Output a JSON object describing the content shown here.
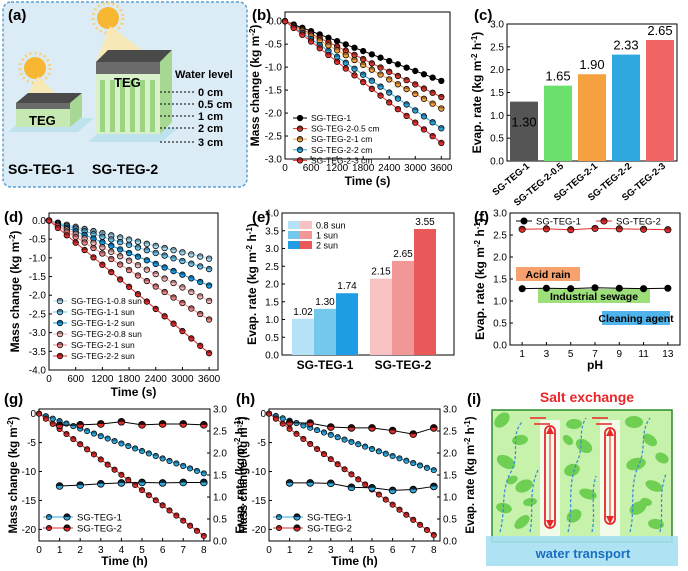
{
  "panels": {
    "a": {
      "label": "(a)",
      "teg_label_1": "TEG",
      "teg_label_2": "TEG",
      "water_level_title": "Water level",
      "water_levels": [
        "0 cm",
        "0.5 cm",
        "1 cm",
        "2 cm",
        "3 cm"
      ],
      "sample_1": "SG-TEG-1",
      "sample_2": "SG-TEG-2",
      "colors": {
        "panel_bg": "#dcecf6",
        "frame": "#5aa0d6",
        "teg_top": "#5a5a5a",
        "pillar": "#b4e0a4",
        "water": "#bfe3ee"
      }
    },
    "i": {
      "label": "(i)",
      "title": "Salt exchange",
      "bottom_label": "water transport",
      "colors": {
        "title": "#e8262b",
        "background": "#bff2a0",
        "grain": "#6fcf53",
        "bottom": "#a6dff2",
        "arrow": "#5aa0d6",
        "channel": "#e8262b"
      }
    }
  },
  "chart_data": [
    {
      "panel": "(b)",
      "type": "line",
      "xlabel": "Time (s)",
      "ylabel": "Mass change (kg m⁻²)",
      "xlim": [
        0,
        3800
      ],
      "ylim": [
        -3.0,
        0.2
      ],
      "xticks": [
        0,
        600,
        1200,
        1800,
        2400,
        3000,
        3600
      ],
      "yticks": [
        -3.0,
        -2.5,
        -2.0,
        -1.5,
        -1.0,
        -0.5,
        0.0
      ],
      "x": [
        0,
        200,
        400,
        600,
        800,
        1000,
        1200,
        1400,
        1600,
        1800,
        2000,
        2200,
        2400,
        2600,
        2800,
        3000,
        3200,
        3400,
        3600
      ],
      "series": [
        {
          "name": "SG-TEG-1",
          "slope_per_hour": -1.3,
          "color": "#000000"
        },
        {
          "name": "SG-TEG-2-0.5 cm",
          "slope_per_hour": -1.65,
          "color": "#d83a2e"
        },
        {
          "name": "SG-TEG-2-1 cm",
          "slope_per_hour": -1.9,
          "color": "#f7a03f"
        },
        {
          "name": "SG-TEG-2-2 cm",
          "slope_per_hour": -2.33,
          "color": "#2fa8e0"
        },
        {
          "name": "SG-TEG-2-3 cm",
          "slope_per_hour": -2.65,
          "color": "#ef2f2f"
        }
      ],
      "legend_order": [
        "SG-TEG-1",
        "SG-TEG-2-0.5 cm",
        "SG-TEG-2-1 cm",
        "SG-TEG-2-2 cm",
        "SG-TEG-2-3 cm"
      ],
      "legend_placement": "bottom-left"
    },
    {
      "panel": "(c)",
      "type": "bar",
      "categories": [
        "SG-TEG-1",
        "SG-TEG-2-0.5",
        "SG-TEG-2-1",
        "SG-TEG-2-2",
        "SG-TEG-2-3"
      ],
      "values": [
        1.3,
        1.65,
        1.9,
        2.33,
        2.65
      ],
      "labels": [
        "1.30",
        "1.65",
        "1.90",
        "2.33",
        "2.65"
      ],
      "colors": [
        "#555555",
        "#6be06b",
        "#f7a03f",
        "#2fa8e0",
        "#f06464"
      ],
      "ylabel": "Evap. rate (kg m⁻² h⁻¹)",
      "ylim": [
        0,
        3.0
      ],
      "yticks": [
        0.0,
        0.5,
        1.0,
        1.5,
        2.0,
        2.5,
        3.0
      ]
    },
    {
      "panel": "(d)",
      "type": "line",
      "xlabel": "Time (s)",
      "ylabel": "Mass change (kg m⁻²)",
      "xlim": [
        0,
        3800
      ],
      "ylim": [
        -4.0,
        0.2
      ],
      "xticks": [
        0,
        600,
        1200,
        1800,
        2400,
        3000,
        3600
      ],
      "yticks": [
        -4.0,
        -3.5,
        -3.0,
        -2.5,
        -2.0,
        -1.5,
        -1.0,
        -0.5,
        0.0
      ],
      "x": [
        0,
        200,
        400,
        600,
        800,
        1000,
        1200,
        1400,
        1600,
        1800,
        2000,
        2200,
        2400,
        2600,
        2800,
        3000,
        3200,
        3400,
        3600
      ],
      "series": [
        {
          "name": "SG-TEG-1-0.8 sun",
          "slope_per_hour": -1.02,
          "color": "#a9dcf2"
        },
        {
          "name": "SG-TEG-1-1 sun",
          "slope_per_hour": -1.3,
          "color": "#6cc4ec"
        },
        {
          "name": "SG-TEG-1-2 sun",
          "slope_per_hour": -1.74,
          "color": "#1a9be3"
        },
        {
          "name": "SG-TEG-2-0.8 sun",
          "slope_per_hour": -2.15,
          "color": "#f6b7b7"
        },
        {
          "name": "SG-TEG-2-1 sun",
          "slope_per_hour": -2.65,
          "color": "#f08686"
        },
        {
          "name": "SG-TEG-2-2 sun",
          "slope_per_hour": -3.55,
          "color": "#e12c2c"
        }
      ],
      "legend_placement": "bottom-left"
    },
    {
      "panel": "(e)",
      "type": "bar",
      "groups": [
        "SG-TEG-1",
        "SG-TEG-2"
      ],
      "series": [
        {
          "name": "0.8 sun",
          "values": [
            1.02,
            2.15
          ],
          "labels": [
            "1.02",
            "2.15"
          ]
        },
        {
          "name": "1 sun",
          "values": [
            1.3,
            2.65
          ],
          "labels": [
            "1.30",
            "2.65"
          ]
        },
        {
          "name": "2 sun",
          "values": [
            1.74,
            3.55
          ],
          "labels": [
            "1.74",
            "3.55"
          ]
        }
      ],
      "group_colors": [
        [
          "#b5e2f6",
          "#74c8ee",
          "#1e9de4"
        ],
        [
          "#f8c2c2",
          "#f29797",
          "#ea5959"
        ]
      ],
      "legend_colors": [
        "#b5e2f6",
        "#74c8ee",
        "#1e9de4"
      ],
      "ylabel": "Evap. rate (kg m⁻² h⁻¹)",
      "ylim": [
        0,
        4.0
      ],
      "yticks": [
        0.0,
        0.5,
        1.0,
        1.5,
        2.0,
        2.5,
        3.0,
        3.5,
        4.0
      ],
      "legend_placement": "top-left"
    },
    {
      "panel": "(f)",
      "type": "line",
      "xlabel": "pH",
      "ylabel": "Evap. rate (kg m⁻² h⁻¹)",
      "x": [
        1,
        3,
        5,
        7,
        9,
        11,
        13
      ],
      "xlim": [
        0,
        14
      ],
      "ylim": [
        0,
        3.0
      ],
      "yticks": [
        0.0,
        0.5,
        1.0,
        1.5,
        2.0,
        2.5,
        3.0
      ],
      "xticks": [
        1,
        3,
        5,
        7,
        9,
        11,
        13
      ],
      "series": [
        {
          "name": "SG-TEG-1",
          "values": [
            1.28,
            1.29,
            1.28,
            1.3,
            1.29,
            1.28,
            1.29
          ],
          "color": "#000000"
        },
        {
          "name": "SG-TEG-2",
          "values": [
            2.63,
            2.64,
            2.62,
            2.65,
            2.64,
            2.63,
            2.62
          ],
          "color": "#e12c2c"
        }
      ],
      "annotations": [
        {
          "text": "Acid rain",
          "color": "#f7a26e"
        },
        {
          "text": "Industrial sewage",
          "color": "#9de07b"
        },
        {
          "text": "Cleaning agent",
          "color": "#4fb3ec"
        }
      ],
      "legend_placement": "top"
    },
    {
      "panel": "(g)",
      "type": "line",
      "xlabel": "Time (h)",
      "ylabel": "Mass change (kg m⁻²)",
      "ylabel_right": "Evap. rate (kg m⁻² h⁻¹)",
      "xlim": [
        0,
        8.3
      ],
      "ylim": [
        -22,
        0.8
      ],
      "ylim_right": [
        0,
        3.0
      ],
      "xticks": [
        0,
        1,
        2,
        3,
        4,
        5,
        6,
        7,
        8
      ],
      "yticks": [
        -20,
        -15,
        -10,
        -5,
        0
      ],
      "yticks_right": [
        0.0,
        0.5,
        1.0,
        1.5,
        2.0,
        2.5,
        3.0
      ],
      "mass_series": [
        {
          "name": "SG-TEG-1",
          "slope_per_hour": -1.29,
          "color": "#2fa8e0"
        },
        {
          "name": "SG-TEG-2",
          "slope_per_hour": -2.64,
          "color": "#e12c2c"
        }
      ],
      "x_mass": [
        0,
        0.333,
        0.667,
        1,
        1.333,
        1.667,
        2,
        2.333,
        2.667,
        3,
        3.333,
        3.667,
        4,
        4.333,
        4.667,
        5,
        5.333,
        5.667,
        6,
        6.333,
        6.667,
        7,
        7.333,
        7.667,
        8
      ],
      "rate_x": [
        1,
        2,
        3,
        4,
        5,
        6,
        7,
        8
      ],
      "rate_series": [
        {
          "name": "SG-TEG-1",
          "values": [
            1.25,
            1.27,
            1.3,
            1.32,
            1.33,
            1.32,
            1.33,
            1.33
          ],
          "color": "#2fa8e0"
        },
        {
          "name": "SG-TEG-2",
          "values": [
            2.63,
            2.64,
            2.66,
            2.71,
            2.64,
            2.66,
            2.66,
            2.64
          ],
          "color": "#e12c2c"
        }
      ],
      "legend": [
        "SG-TEG-1",
        "SG-TEG-2"
      ],
      "legend_placement": "bottom-left"
    },
    {
      "panel": "(h)",
      "type": "line",
      "xlabel": "Time (h)",
      "ylabel": "Mass change (kg m⁻²)",
      "ylabel_right": "Evap. rate (kg m⁻² h⁻¹)",
      "xlim": [
        0,
        8.3
      ],
      "ylim": [
        -22,
        0.8
      ],
      "ylim_right": [
        0,
        3.0
      ],
      "xticks": [
        0,
        1,
        2,
        3,
        4,
        5,
        6,
        7,
        8
      ],
      "yticks": [
        -20,
        -15,
        -10,
        -5,
        0
      ],
      "yticks_right": [
        0.0,
        0.5,
        1.0,
        1.5,
        2.0,
        2.5,
        3.0
      ],
      "mass_series": [
        {
          "name": "SG-TEG-1",
          "slope_per_hour": -1.22,
          "color": "#2fa8e0"
        },
        {
          "name": "SG-TEG-2",
          "slope_per_hour": -2.62,
          "color": "#e12c2c"
        }
      ],
      "x_mass": [
        0,
        0.333,
        0.667,
        1,
        1.333,
        1.667,
        2,
        2.333,
        2.667,
        3,
        3.333,
        3.667,
        4,
        4.333,
        4.667,
        5,
        5.333,
        5.667,
        6,
        6.333,
        6.667,
        7,
        7.333,
        7.667,
        8
      ],
      "rate_x": [
        1,
        2,
        3,
        4,
        5,
        6,
        7,
        8
      ],
      "rate_series": [
        {
          "name": "SG-TEG-1",
          "values": [
            1.32,
            1.32,
            1.31,
            1.22,
            1.21,
            1.15,
            1.17,
            1.24
          ],
          "color": "#2fa8e0"
        },
        {
          "name": "SG-TEG-2",
          "values": [
            2.69,
            2.68,
            2.59,
            2.57,
            2.57,
            2.51,
            2.43,
            2.57
          ],
          "color": "#e12c2c"
        }
      ],
      "legend": [
        "SG-TEG-1",
        "SG-TEG-2"
      ],
      "legend_placement": "bottom-left"
    }
  ]
}
